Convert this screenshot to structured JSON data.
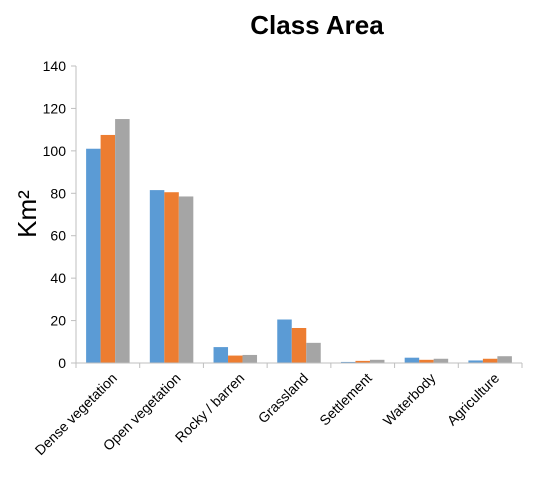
{
  "chart_data": {
    "type": "bar",
    "title": "Class Area",
    "xlabel": "",
    "ylabel": "Km²",
    "ylim": [
      0,
      140
    ],
    "yticks": [
      0,
      20,
      40,
      60,
      80,
      100,
      120,
      140
    ],
    "grid": false,
    "legend": "none",
    "categories": [
      "Dense vegetation",
      "Open vegetation",
      "Rocky / barren",
      "Grassland",
      "Settlement",
      "Waterbody",
      "Agriculture"
    ],
    "series": [
      {
        "color": "#5b9bd5",
        "values": [
          101,
          81.5,
          7.5,
          20.5,
          0.5,
          2.5,
          1.2
        ]
      },
      {
        "color": "#ed7d31",
        "values": [
          107.5,
          80.5,
          3.5,
          16.5,
          1,
          1.5,
          2
        ]
      },
      {
        "color": "#a5a5a5",
        "values": [
          115,
          78.5,
          3.8,
          9.5,
          1.5,
          2,
          3.2
        ]
      }
    ]
  }
}
